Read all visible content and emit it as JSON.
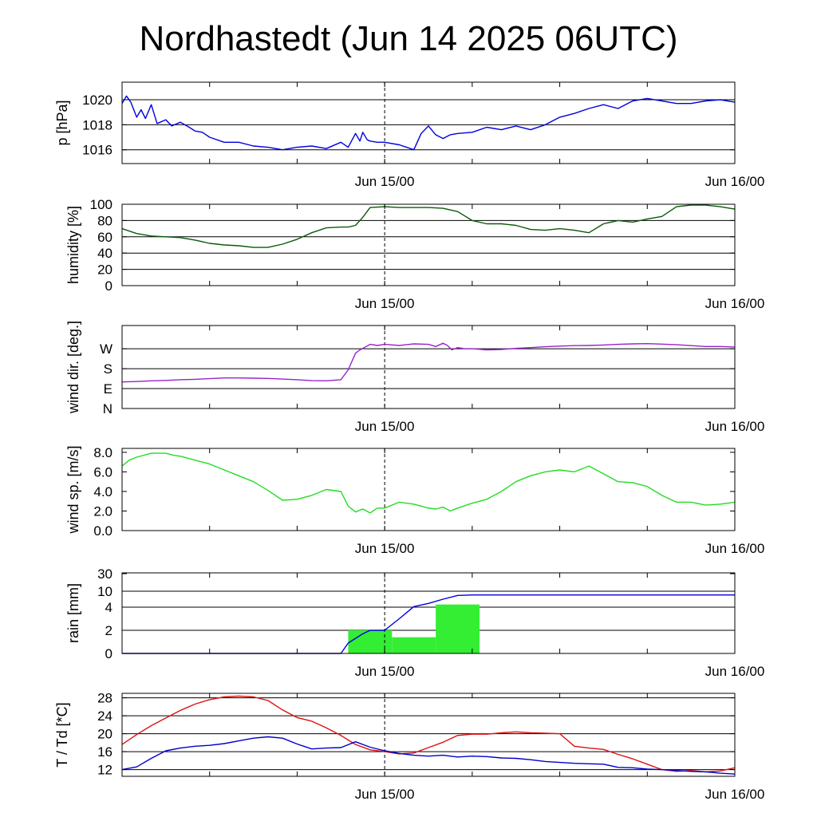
{
  "title": "Nordhastedt (Jun 14 2025 06UTC)",
  "x_tick_labels": [
    "Jun 15/00",
    "Jun 16/00"
  ],
  "colors": {
    "pressure": "#0000dd",
    "humidity": "#0a5a0a",
    "wind_dir": "#9a22cc",
    "wind_speed": "#22dd22",
    "rain_bar": "#33ee33",
    "rain_line": "#0000dd",
    "temperature": "#dd1111",
    "dewpoint": "#0000cc"
  },
  "chart_data": [
    {
      "type": "line",
      "ylabel": "p [hPa]",
      "yticks": [
        "1016",
        "1018",
        "1020"
      ],
      "ylim": [
        1014.9,
        1021.4
      ],
      "x_unit": "hours since Jun 14 06UTC",
      "xlim": [
        0,
        42
      ],
      "grid": true,
      "series": [
        {
          "x": [
            0,
            0.3,
            0.6,
            1,
            1.3,
            1.6,
            2,
            2.4,
            3,
            3.4,
            4,
            4.6,
            5,
            5.5,
            6,
            7,
            8,
            9,
            10,
            11,
            12,
            13,
            14,
            15,
            15.5,
            16,
            16.3,
            16.5,
            16.8,
            17,
            17.5,
            18,
            19,
            19.5,
            20,
            20.5,
            21,
            21.5,
            22,
            22.5,
            23,
            24,
            25,
            26,
            27,
            28,
            29,
            30,
            31,
            32,
            33,
            34,
            35,
            36,
            37,
            38,
            39,
            40,
            41,
            42
          ],
          "y": [
            1019.7,
            1020.3,
            1019.8,
            1018.6,
            1019.2,
            1018.5,
            1019.6,
            1018.1,
            1018.4,
            1017.9,
            1018.2,
            1017.8,
            1017.5,
            1017.4,
            1017.0,
            1016.6,
            1016.6,
            1016.3,
            1016.2,
            1016.0,
            1016.2,
            1016.3,
            1016.1,
            1016.6,
            1016.2,
            1017.3,
            1016.7,
            1017.4,
            1016.8,
            1016.7,
            1016.6,
            1016.6,
            1016.4,
            1016.2,
            1016.0,
            1017.3,
            1017.9,
            1017.2,
            1016.9,
            1017.2,
            1017.3,
            1017.4,
            1017.8,
            1017.6,
            1017.9,
            1017.6,
            1018.0,
            1018.6,
            1018.9,
            1019.3,
            1019.6,
            1019.3,
            1019.9,
            1020.1,
            1019.9,
            1019.7,
            1019.7,
            1019.9,
            1020.0,
            1019.8
          ]
        }
      ]
    },
    {
      "type": "line",
      "ylabel": "humidity [%]",
      "yticks": [
        "0",
        "20",
        "40",
        "60",
        "80",
        "100"
      ],
      "ylim": [
        0,
        100
      ],
      "grid": true,
      "series": [
        {
          "x": [
            0,
            1,
            2,
            3,
            4,
            5,
            6,
            7,
            8,
            9,
            10,
            11,
            12,
            13,
            14,
            15,
            15.5,
            16,
            16.5,
            17,
            18,
            19,
            20,
            21,
            22,
            23,
            24,
            25,
            26,
            27,
            28,
            29,
            30,
            31,
            32,
            33,
            34,
            35,
            36,
            37,
            38,
            39,
            40,
            41,
            42
          ],
          "y": [
            70,
            64,
            61,
            60,
            59,
            56,
            52,
            50,
            49,
            47,
            47,
            51,
            57,
            65,
            71,
            72,
            72,
            74,
            84,
            96,
            97,
            96,
            96,
            96,
            95,
            91,
            80,
            76,
            76,
            74,
            69,
            68,
            70,
            68,
            65,
            76,
            80,
            78,
            82,
            85,
            97,
            99,
            99,
            97,
            94
          ]
        }
      ]
    },
    {
      "type": "line",
      "ylabel": "wind dir. [deg.]",
      "yticks": [
        "N",
        "E",
        "S",
        "W"
      ],
      "ylim": [
        0,
        375
      ],
      "grid": true,
      "series": [
        {
          "x": [
            0,
            1,
            2,
            3,
            4,
            5,
            6,
            7,
            8,
            9,
            10,
            11,
            12,
            13,
            14,
            15,
            15.5,
            16,
            16.3,
            16.6,
            17,
            17.5,
            18,
            19,
            20,
            21,
            21.5,
            22,
            22.3,
            22.6,
            23,
            23.5,
            24,
            25,
            26,
            27,
            28,
            29,
            30,
            31,
            32,
            33,
            34,
            35,
            36,
            37,
            38,
            39,
            40,
            41,
            42
          ],
          "y": [
            120,
            122,
            125,
            127,
            130,
            132,
            135,
            138,
            138,
            137,
            136,
            133,
            130,
            126,
            125,
            130,
            175,
            250,
            265,
            275,
            290,
            285,
            290,
            285,
            292,
            290,
            280,
            295,
            285,
            265,
            275,
            270,
            270,
            265,
            267,
            272,
            275,
            279,
            282,
            284,
            285,
            287,
            290,
            292,
            293,
            291,
            288,
            284,
            280,
            280,
            278
          ]
        }
      ]
    },
    {
      "type": "line",
      "ylabel": "wind sp. [m/s]",
      "yticks": [
        "0.0",
        "2.0",
        "4.0",
        "6.0",
        "8.0"
      ],
      "ylim": [
        0,
        8.4
      ],
      "grid": false,
      "series": [
        {
          "x": [
            0,
            0.5,
            1,
            2,
            3,
            3.5,
            4,
            5,
            6,
            7,
            8,
            9,
            10,
            11,
            12,
            13,
            14,
            15,
            15.5,
            16,
            16.5,
            17,
            17.5,
            18,
            19,
            20,
            21,
            21.5,
            22,
            22.5,
            23,
            24,
            25,
            26,
            27,
            28,
            29,
            30,
            31,
            32,
            33,
            34,
            35,
            36,
            37,
            38,
            39,
            40,
            41,
            42
          ],
          "y": [
            6.6,
            7.2,
            7.5,
            7.9,
            7.9,
            7.7,
            7.6,
            7.2,
            6.8,
            6.2,
            5.6,
            5.0,
            4.1,
            3.1,
            3.2,
            3.6,
            4.2,
            4.0,
            2.5,
            1.9,
            2.2,
            1.8,
            2.3,
            2.3,
            2.9,
            2.7,
            2.3,
            2.2,
            2.4,
            2.0,
            2.3,
            2.8,
            3.2,
            4.0,
            5.0,
            5.6,
            6.0,
            6.2,
            6.0,
            6.6,
            5.8,
            5.0,
            4.9,
            4.5,
            3.6,
            2.9,
            2.9,
            2.6,
            2.7,
            2.9
          ]
        }
      ]
    },
    {
      "type": "bar",
      "ylabel": "rain [mm]",
      "yticks": [
        "0",
        "2",
        "4",
        "10",
        "30"
      ],
      "ylim": [
        0,
        30
      ],
      "grid": true,
      "bars": [
        {
          "x_start": 15.5,
          "x_end": 18.5,
          "value": 2.0
        },
        {
          "x_start": 18.5,
          "x_end": 21.5,
          "value": 1.4
        },
        {
          "x_start": 21.5,
          "x_end": 24.5,
          "value": 5.0
        }
      ],
      "series": [
        {
          "x": [
            0,
            15.0,
            15.5,
            16,
            16.5,
            17,
            18,
            19,
            20,
            21,
            22,
            23,
            24,
            42
          ],
          "y": [
            0,
            0,
            0.9,
            1.3,
            1.7,
            2.0,
            2.0,
            3.0,
            4.2,
            5.4,
            7.0,
            8.4,
            8.6,
            8.6
          ]
        }
      ]
    },
    {
      "type": "line",
      "ylabel": "T / Td [*C]",
      "yticks": [
        "12",
        "16",
        "20",
        "24",
        "28"
      ],
      "ylim": [
        10.5,
        29
      ],
      "grid": true,
      "series": [
        {
          "x": [
            0,
            1,
            2,
            3,
            4,
            5,
            6,
            7,
            8,
            9,
            10,
            11,
            12,
            13,
            14,
            15,
            16,
            17,
            18,
            19,
            20,
            21,
            22,
            23,
            24,
            25,
            26,
            27,
            28,
            29,
            30,
            31,
            32,
            33,
            34,
            35,
            36,
            37,
            38,
            39,
            40,
            41,
            42
          ],
          "y": [
            17.6,
            19.8,
            21.8,
            23.5,
            25.2,
            26.6,
            27.6,
            28.2,
            28.4,
            28.2,
            27.4,
            25.3,
            23.6,
            22.8,
            21.3,
            19.6,
            17.6,
            16.4,
            16.0,
            15.5,
            15.7,
            16.9,
            18.1,
            19.6,
            19.9,
            19.9,
            20.2,
            20.4,
            20.2,
            20.1,
            20.0,
            17.2,
            16.8,
            16.5,
            15.4,
            14.4,
            13.2,
            12.0,
            11.6,
            11.8,
            11.5,
            11.7,
            12.4
          ]
        },
        {
          "x": [
            0,
            1,
            2,
            3,
            4,
            5,
            6,
            7,
            8,
            9,
            10,
            11,
            12,
            13,
            14,
            15,
            16,
            17,
            18,
            19,
            20,
            21,
            22,
            23,
            24,
            25,
            26,
            27,
            28,
            29,
            30,
            31,
            32,
            33,
            34,
            35,
            36,
            37,
            38,
            39,
            40,
            41,
            42
          ],
          "y": [
            12.0,
            12.6,
            14.5,
            16.2,
            16.8,
            17.2,
            17.4,
            17.8,
            18.4,
            19.0,
            19.3,
            19.0,
            17.7,
            16.6,
            16.8,
            16.9,
            18.2,
            17.0,
            16.2,
            15.6,
            15.2,
            15.0,
            15.2,
            14.8,
            15.0,
            14.9,
            14.6,
            14.5,
            14.2,
            13.8,
            13.6,
            13.4,
            13.3,
            13.2,
            12.5,
            12.4,
            12.1,
            12.0,
            11.8,
            11.6,
            11.5,
            11.2,
            11.0
          ]
        }
      ]
    }
  ]
}
